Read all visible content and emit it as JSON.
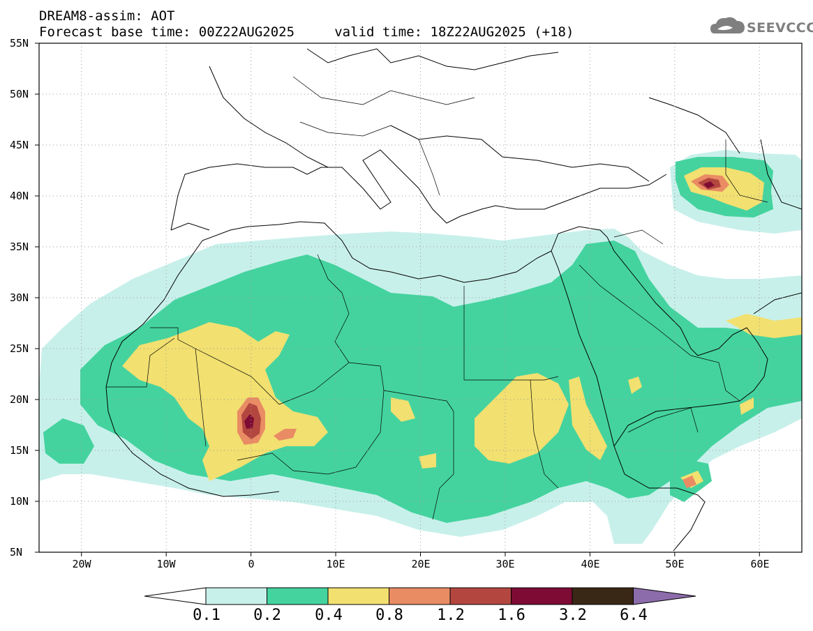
{
  "header": {
    "line1": "DREAM8-assim: AOT",
    "line2": "Forecast base time: 00Z22AUG2025     valid time: 18Z22AUG2025 (+18)"
  },
  "logo": {
    "text": "SEEVCCC",
    "icon": "cloud-icon"
  },
  "axes": {
    "y_labels": [
      "55N",
      "50N",
      "45N",
      "40N",
      "35N",
      "30N",
      "25N",
      "20N",
      "15N",
      "10N",
      "5N"
    ],
    "x_labels": [
      "20W",
      "10W",
      "0",
      "10E",
      "20E",
      "30E",
      "40E",
      "50E",
      "60E"
    ],
    "lon_range": [
      -25,
      65
    ],
    "lat_range": [
      5,
      55
    ]
  },
  "colorbar": {
    "labels": [
      "0.1",
      "0.2",
      "0.4",
      "0.8",
      "1.2",
      "1.6",
      "3.2",
      "6.4"
    ],
    "colors": [
      "#c8f0ea",
      "#44d39f",
      "#f2e070",
      "#e98c64",
      "#b3473f",
      "#7d0b33",
      "#3a2817",
      "#8d6cab"
    ],
    "under_color": "#ffffff"
  }
}
